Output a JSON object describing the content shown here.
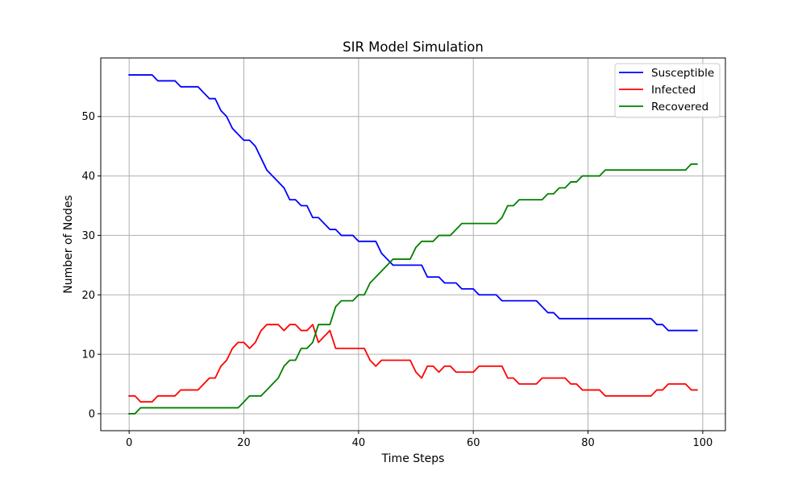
{
  "chart_data": {
    "type": "line",
    "title": "SIR Model Simulation",
    "xlabel": "Time Steps",
    "ylabel": "Number of Nodes",
    "xlim": [
      -4.95,
      103.95
    ],
    "ylim": [
      -2.85,
      59.85
    ],
    "xticks": [
      0,
      20,
      40,
      60,
      80,
      100
    ],
    "yticks": [
      0,
      10,
      20,
      30,
      40,
      50
    ],
    "grid": true,
    "legend_position": "top-right",
    "x": [
      0,
      1,
      2,
      3,
      4,
      5,
      6,
      7,
      8,
      9,
      10,
      11,
      12,
      13,
      14,
      15,
      16,
      17,
      18,
      19,
      20,
      21,
      22,
      23,
      24,
      25,
      26,
      27,
      28,
      29,
      30,
      31,
      32,
      33,
      34,
      35,
      36,
      37,
      38,
      39,
      40,
      41,
      42,
      43,
      44,
      45,
      46,
      47,
      48,
      49,
      50,
      51,
      52,
      53,
      54,
      55,
      56,
      57,
      58,
      59,
      60,
      61,
      62,
      63,
      64,
      65,
      66,
      67,
      68,
      69,
      70,
      71,
      72,
      73,
      74,
      75,
      76,
      77,
      78,
      79,
      80,
      81,
      82,
      83,
      84,
      85,
      86,
      87,
      88,
      89,
      90,
      91,
      92,
      93,
      94,
      95,
      96,
      97,
      98,
      99
    ],
    "series": [
      {
        "name": "Susceptible",
        "color": "#0000ff",
        "values": [
          57,
          57,
          57,
          57,
          57,
          56,
          56,
          56,
          56,
          55,
          55,
          55,
          55,
          54,
          53,
          53,
          51,
          50,
          48,
          47,
          46,
          46,
          45,
          43,
          41,
          40,
          39,
          38,
          36,
          36,
          35,
          35,
          33,
          33,
          32,
          31,
          31,
          30,
          30,
          30,
          29,
          29,
          29,
          29,
          27,
          26,
          25,
          25,
          25,
          25,
          25,
          25,
          23,
          23,
          23,
          22,
          22,
          22,
          21,
          21,
          21,
          20,
          20,
          20,
          20,
          19,
          19,
          19,
          19,
          19,
          19,
          19,
          18,
          17,
          17,
          16,
          16,
          16,
          16,
          16,
          16,
          16,
          16,
          16,
          16,
          16,
          16,
          16,
          16,
          16,
          16,
          16,
          15,
          15,
          14,
          14,
          14,
          14,
          14,
          14
        ]
      },
      {
        "name": "Infected",
        "color": "#ff0000",
        "values": [
          3,
          3,
          2,
          2,
          2,
          3,
          3,
          3,
          3,
          4,
          4,
          4,
          4,
          5,
          6,
          6,
          8,
          9,
          11,
          12,
          12,
          11,
          12,
          14,
          15,
          15,
          15,
          14,
          15,
          15,
          14,
          14,
          15,
          12,
          13,
          14,
          11,
          11,
          11,
          11,
          11,
          11,
          9,
          8,
          9,
          9,
          9,
          9,
          9,
          9,
          7,
          6,
          8,
          8,
          7,
          8,
          8,
          7,
          7,
          7,
          7,
          8,
          8,
          8,
          8,
          8,
          6,
          6,
          5,
          5,
          5,
          5,
          6,
          6,
          6,
          6,
          6,
          5,
          5,
          4,
          4,
          4,
          4,
          3,
          3,
          3,
          3,
          3,
          3,
          3,
          3,
          3,
          4,
          4,
          5,
          5,
          5,
          5,
          4,
          4
        ]
      },
      {
        "name": "Recovered",
        "color": "#008000",
        "values": [
          0,
          0,
          1,
          1,
          1,
          1,
          1,
          1,
          1,
          1,
          1,
          1,
          1,
          1,
          1,
          1,
          1,
          1,
          1,
          1,
          2,
          3,
          3,
          3,
          4,
          5,
          6,
          8,
          9,
          9,
          11,
          11,
          12,
          15,
          15,
          15,
          18,
          19,
          19,
          19,
          20,
          20,
          22,
          23,
          24,
          25,
          26,
          26,
          26,
          26,
          28,
          29,
          29,
          29,
          30,
          30,
          30,
          31,
          32,
          32,
          32,
          32,
          32,
          32,
          32,
          33,
          35,
          35,
          36,
          36,
          36,
          36,
          36,
          37,
          37,
          38,
          38,
          39,
          39,
          40,
          40,
          40,
          40,
          41,
          41,
          41,
          41,
          41,
          41,
          41,
          41,
          41,
          41,
          41,
          41,
          41,
          41,
          41,
          42,
          42
        ]
      }
    ]
  }
}
